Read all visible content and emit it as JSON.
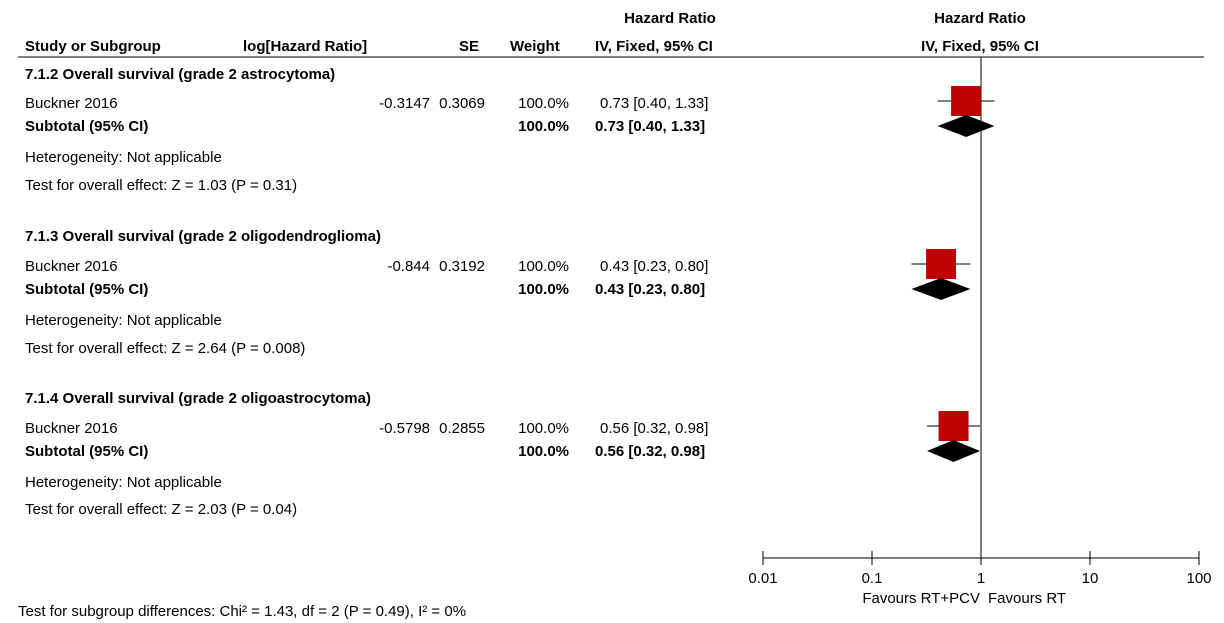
{
  "header": {
    "hr_title_left": "Hazard Ratio",
    "hr_title_right": "Hazard Ratio",
    "col_study": "Study or Subgroup",
    "col_loghr": "log[Hazard Ratio]",
    "col_se": "SE",
    "col_weight": "Weight",
    "col_ci": "IV, Fixed, 95% CI",
    "col_plot": "IV, Fixed, 95% CI"
  },
  "groups": [
    {
      "title": "7.1.2 Overall survival (grade 2 astrocytoma)",
      "study": "Buckner 2016",
      "loghr": "-0.3147",
      "se": "0.3069",
      "weight": "100.0%",
      "ci": "0.73 [0.40, 1.33]",
      "subtotal_label": "Subtotal (95% CI)",
      "subtotal_weight": "100.0%",
      "subtotal_ci": "0.73 [0.40, 1.33]",
      "heterogeneity": "Heterogeneity: Not applicable",
      "overall": "Test for overall effect: Z = 1.03 (P = 0.31)"
    },
    {
      "title": "7.1.3 Overall survival (grade 2 oligodendroglioma)",
      "study": "Buckner 2016",
      "loghr": "-0.844",
      "se": "0.3192",
      "weight": "100.0%",
      "ci": "0.43 [0.23, 0.80]",
      "subtotal_label": "Subtotal (95% CI)",
      "subtotal_weight": "100.0%",
      "subtotal_ci": "0.43 [0.23, 0.80]",
      "heterogeneity": "Heterogeneity: Not applicable",
      "overall": "Test for overall effect: Z = 2.64 (P = 0.008)"
    },
    {
      "title": "7.1.4 Overall survival (grade 2 oligoastrocytoma)",
      "study": "Buckner 2016",
      "loghr": "-0.5798",
      "se": "0.2855",
      "weight": "100.0%",
      "ci": "0.56 [0.32, 0.98]",
      "subtotal_label": "Subtotal (95% CI)",
      "subtotal_weight": "100.0%",
      "subtotal_ci": "0.56 [0.32, 0.98]",
      "heterogeneity": "Heterogeneity: Not applicable",
      "overall": "Test for overall effect: Z = 2.03 (P = 0.04)"
    }
  ],
  "footer": {
    "subgroup_test": "Test for subgroup differences: Chi² = 1.43, df = 2 (P = 0.49), I² = 0%",
    "favours_left": "Favours RT+PCV",
    "favours_right": "Favours RT"
  },
  "colors": {
    "study_marker": "#c00000",
    "diamond": "#000000"
  },
  "chart_data": {
    "type": "forest",
    "scale": "log",
    "xlim": [
      0.01,
      100
    ],
    "ticks": [
      0.01,
      0.1,
      1,
      10,
      100
    ],
    "tick_labels": [
      "0.01",
      "0.1",
      "1",
      "10",
      "100"
    ],
    "null_line": 1,
    "studies": [
      {
        "hr": 0.73,
        "lo": 0.4,
        "hi": 1.33,
        "weight": 100.0
      },
      {
        "hr": 0.43,
        "lo": 0.23,
        "hi": 0.8,
        "weight": 100.0
      },
      {
        "hr": 0.56,
        "lo": 0.32,
        "hi": 0.98,
        "weight": 100.0
      }
    ],
    "subtotals": [
      {
        "hr": 0.73,
        "lo": 0.4,
        "hi": 1.33
      },
      {
        "hr": 0.43,
        "lo": 0.23,
        "hi": 0.8
      },
      {
        "hr": 0.56,
        "lo": 0.32,
        "hi": 0.98
      }
    ]
  }
}
